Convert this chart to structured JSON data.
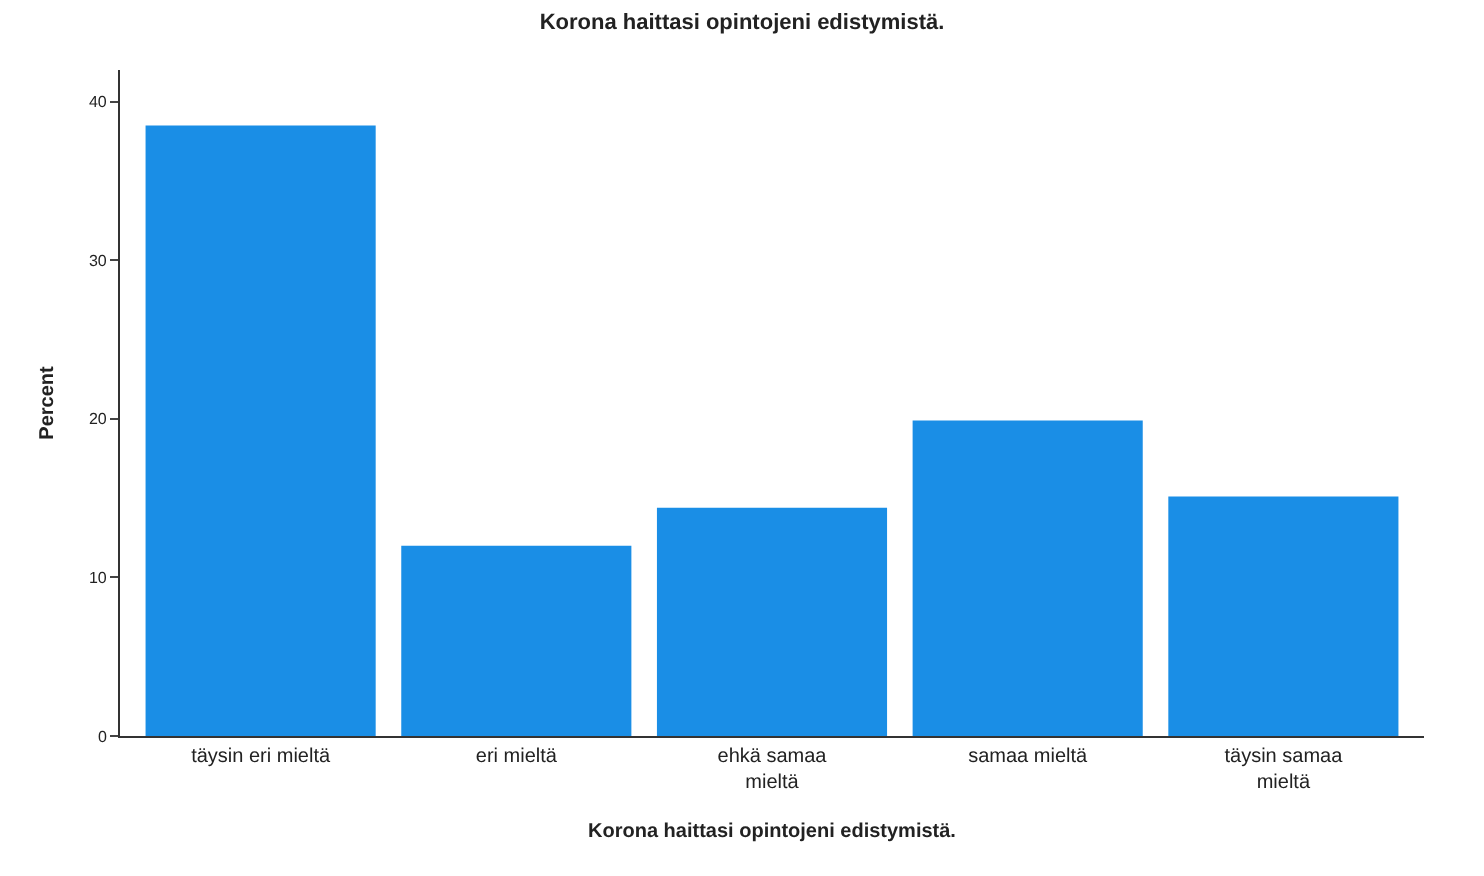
{
  "chart_data": {
    "type": "bar",
    "title": "Korona haittasi opintojeni edistymistä.",
    "xlabel": "Korona haittasi opintojeni edistymistä.",
    "ylabel": "Percent",
    "categories": [
      "täysin eri mieltä",
      "eri mieltä",
      "ehkä samaa\nmieltä",
      "samaa mieltä",
      "täysin samaa\nmieltä"
    ],
    "values": [
      38.5,
      12.0,
      14.4,
      19.9,
      15.1
    ],
    "color": "#1a8ee6",
    "ylim": [
      0,
      42
    ],
    "yticks": [
      0,
      10,
      20,
      30,
      40
    ]
  }
}
